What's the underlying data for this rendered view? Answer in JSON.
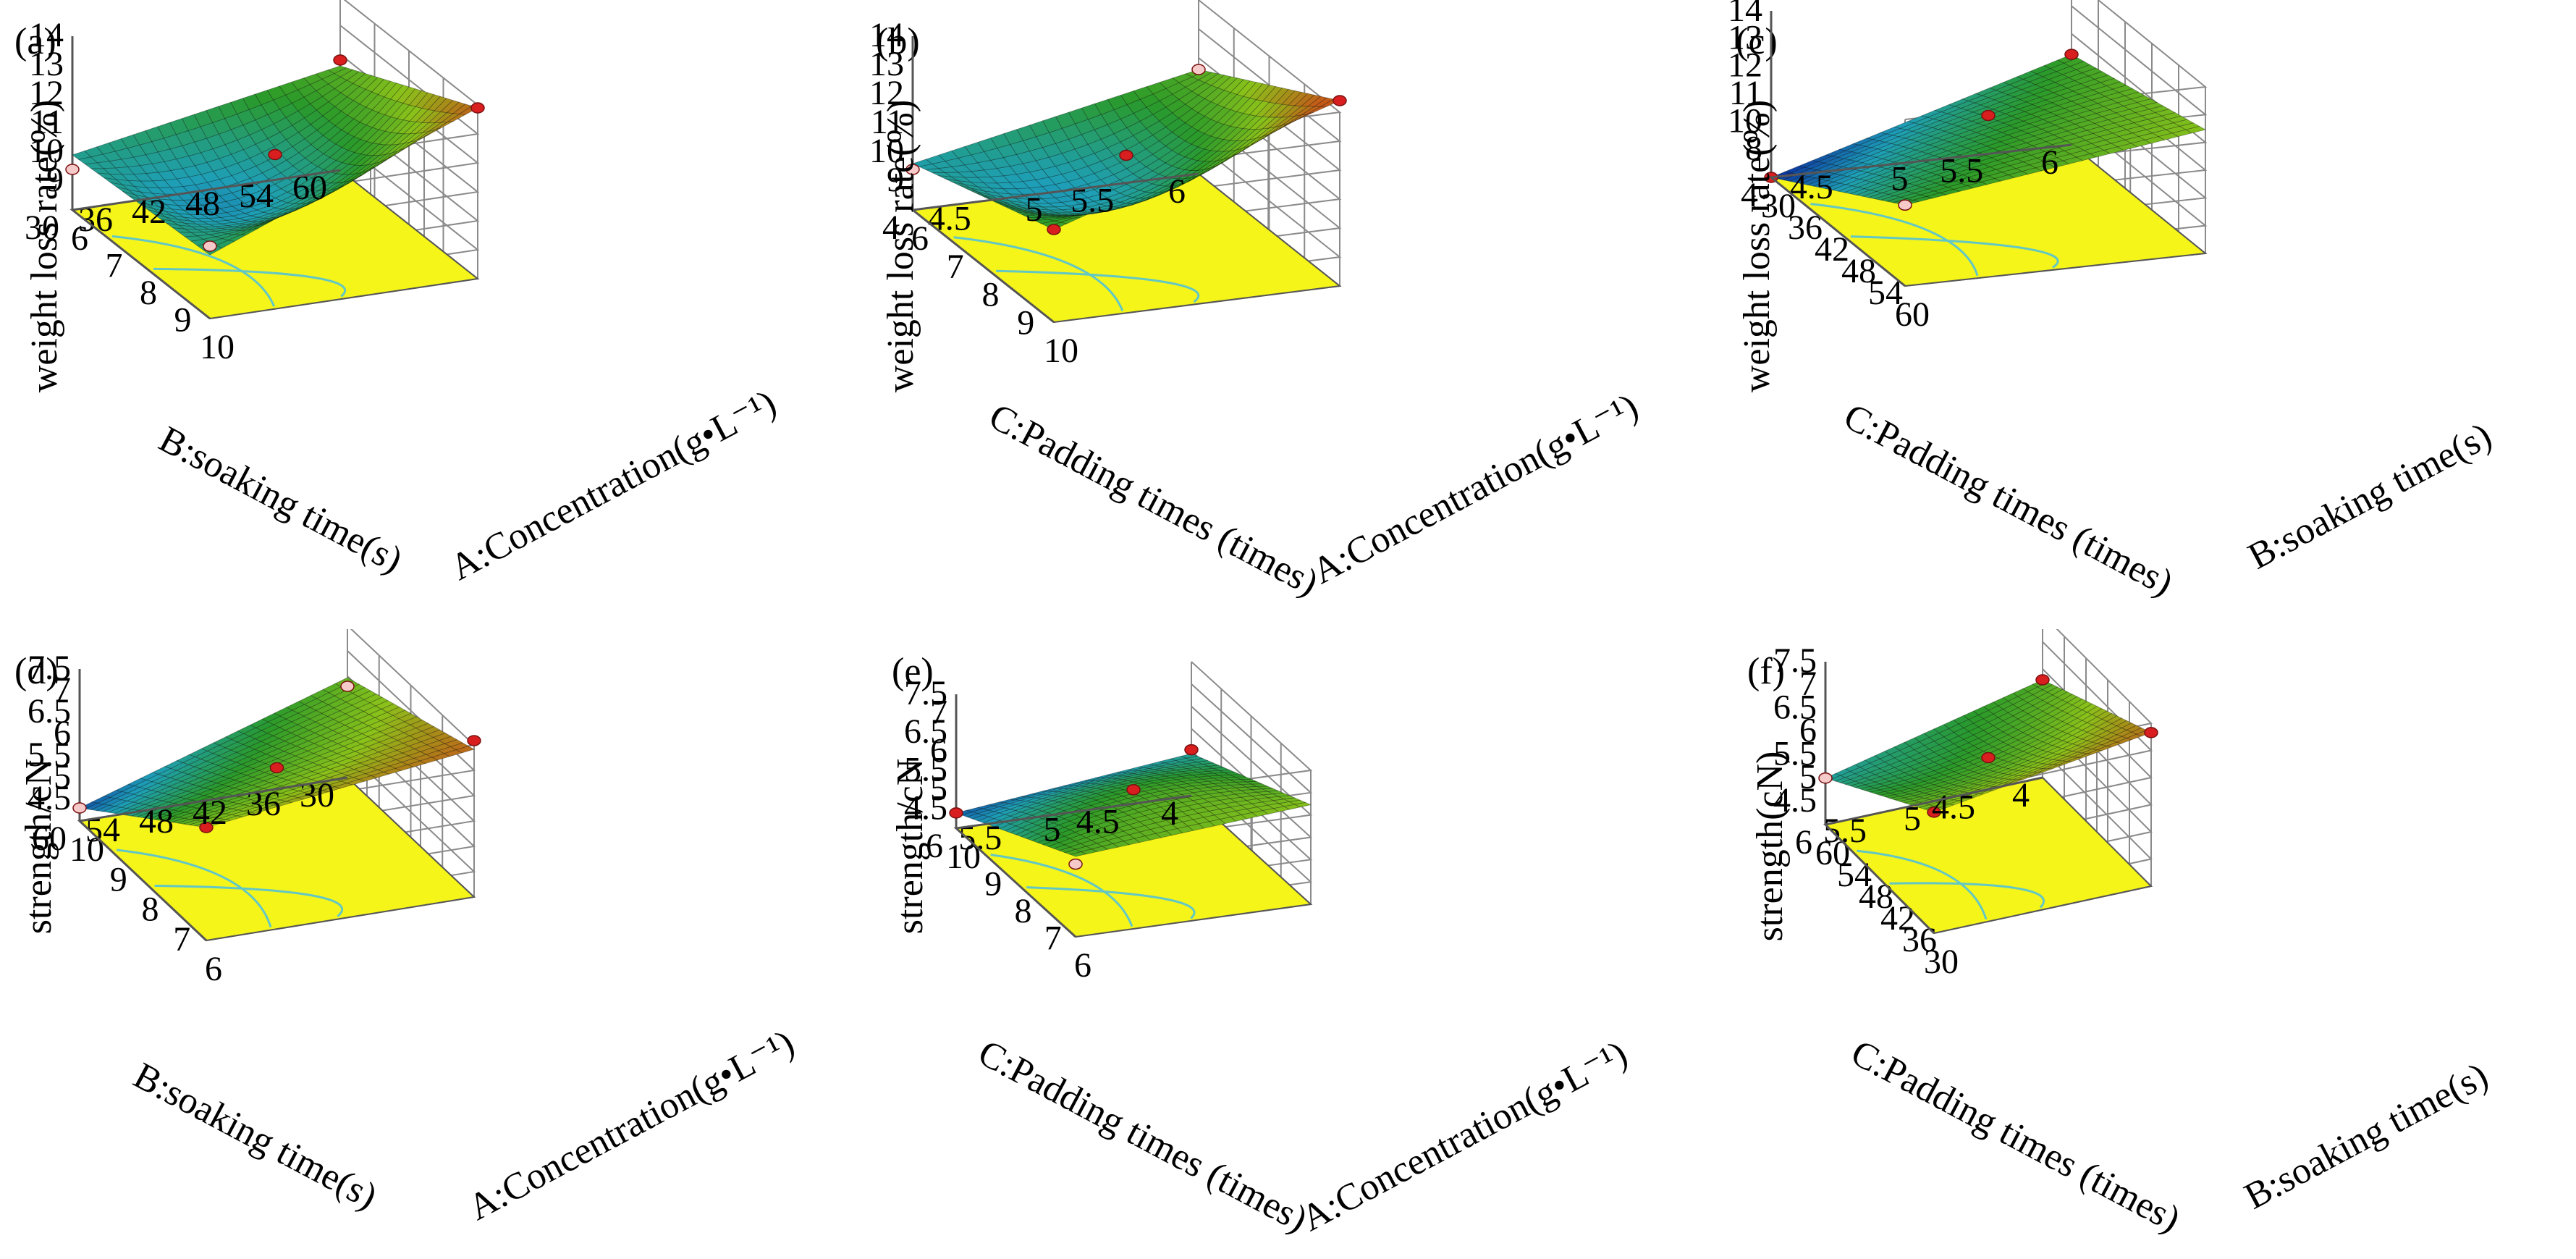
{
  "colors": {
    "floor": "#f5f519",
    "contour": "#63c7c4",
    "grid": "#8a8a8a",
    "box": "#555555",
    "point_high": "#d81e1e",
    "point_low": "#f7caca",
    "surface_low": "#0a2b9e",
    "surface_mid1": "#1e9fb7",
    "surface_mid2": "#2a9a2a",
    "surface_mid3": "#8ac21a",
    "surface_high": "#c45a18"
  },
  "chart_data": [
    {
      "id": "a",
      "panel_label": "(a)",
      "type": "surface3d",
      "ylabel": "weight loss rate(%)",
      "xlabel": "A:Concentration(g•L⁻¹)",
      "zlabel": "B:soaking time(s)",
      "x_ticks": [
        "6",
        "7",
        "8",
        "9",
        "10"
      ],
      "z_ticks": [
        "30",
        "36",
        "42",
        "48",
        "54",
        "60"
      ],
      "y_ticks": [
        "9",
        "10",
        "11",
        "12",
        "13",
        "14"
      ],
      "ylim": [
        8,
        14
      ],
      "corners": {
        "x_min_z_min": 9.9,
        "x_max_z_min": 10.2,
        "x_min_z_max": 11.6,
        "x_max_z_max": 13.9
      },
      "center": 9.6,
      "design_points": [
        {
          "x": 10,
          "z": 60,
          "y": 13.9,
          "above": true
        },
        {
          "x": 6,
          "z": 60,
          "y": 11.8,
          "above": true
        },
        {
          "x": 8,
          "z": 45,
          "y": 11.1,
          "above": true
        },
        {
          "x": 10,
          "z": 30,
          "y": 10.5,
          "above": false
        },
        {
          "x": 6,
          "z": 30,
          "y": 9.4,
          "above": false
        }
      ]
    },
    {
      "id": "b",
      "panel_label": "(b)",
      "type": "surface3d",
      "ylabel": "weight loss rate(%)",
      "xlabel": "A:Concentration(g•L⁻¹)",
      "zlabel": "C:Padding times (times)",
      "x_ticks": [
        "6",
        "7",
        "8",
        "9",
        "10"
      ],
      "z_ticks": [
        "4",
        "4.5",
        "5",
        "5.5",
        "6"
      ],
      "y_ticks": [
        "9",
        "10",
        "11",
        "12",
        "13",
        "14"
      ],
      "ylim": [
        8,
        14
      ],
      "corners": {
        "x_min_z_min": 9.6,
        "x_max_z_min": 11.2,
        "x_min_z_max": 11.6,
        "x_max_z_max": 14.4
      },
      "center": 9.8,
      "design_points": [
        {
          "x": 10,
          "z": 6,
          "y": 14.4,
          "above": true
        },
        {
          "x": 6,
          "z": 6,
          "y": 11.6,
          "above": false
        },
        {
          "x": 8,
          "z": 5,
          "y": 11.2,
          "above": true
        },
        {
          "x": 10,
          "z": 4,
          "y": 11.2,
          "above": true
        },
        {
          "x": 6,
          "z": 4,
          "y": 9.4,
          "above": false
        }
      ]
    },
    {
      "id": "c",
      "panel_label": "(c)",
      "type": "surface3d",
      "ylabel": "weight loss rate(%)",
      "xlabel": "B:soaking time(s)",
      "zlabel": "C:Padding times (times)",
      "x_ticks": [
        "30",
        "36",
        "42",
        "48",
        "54",
        "60"
      ],
      "z_ticks": [
        "4",
        "4.5",
        "5",
        "5.5",
        "6"
      ],
      "y_ticks": [
        "8",
        "10",
        "11",
        "12",
        "13",
        "14"
      ],
      "ylim": [
        7,
        14
      ],
      "corners": {
        "x_min_z_min": 7.0,
        "x_max_z_min": 10.4,
        "x_min_z_max": 10.8,
        "x_max_z_max": 12.2
      },
      "center": 10.3,
      "design_points": [
        {
          "x": 30,
          "z": 4,
          "y": 7.0,
          "above": true
        },
        {
          "x": 30,
          "z": 6,
          "y": 10.8,
          "above": true
        },
        {
          "x": 45,
          "z": 5,
          "y": 11.2,
          "above": true
        },
        {
          "x": 60,
          "z": 4,
          "y": 10.4,
          "above": false
        }
      ]
    },
    {
      "id": "d",
      "panel_label": "(d)",
      "type": "surface3d",
      "ylabel": "strength/cN",
      "xlabel": "A:Concentration(g•L⁻¹)",
      "zlabel": "B:soaking time(s)",
      "x_ticks": [
        "10",
        "9",
        "8",
        "7",
        "6"
      ],
      "z_ticks": [
        "60",
        "54",
        "48",
        "42",
        "36",
        "30"
      ],
      "y_ticks": [
        "4.5",
        "5",
        "5.5",
        "6",
        "6.5",
        "7",
        "7.5"
      ],
      "ylim": [
        4,
        7.5
      ],
      "corners": {
        "x_min_z_min": 4.3,
        "x_max_z_min": 6.6,
        "x_min_z_max": 6.3,
        "x_max_z_max": 7.4
      },
      "center": 6.1,
      "design_points": [
        {
          "x": 10,
          "z": 60,
          "y": 4.3,
          "above": false
        },
        {
          "x": 10,
          "z": 30,
          "y": 6.1,
          "above": false
        },
        {
          "x": 6,
          "z": 30,
          "y": 7.6,
          "above": true
        },
        {
          "x": 6,
          "z": 60,
          "y": 6.6,
          "above": true
        },
        {
          "x": 8,
          "z": 45,
          "y": 6.1,
          "above": true
        }
      ]
    },
    {
      "id": "e",
      "panel_label": "(e)",
      "type": "surface3d",
      "ylabel": "strength/cN",
      "xlabel": "A:Concentration(g•L⁻¹)",
      "zlabel": "C:Padding times (times)",
      "x_ticks": [
        "10",
        "9",
        "8",
        "7",
        "6"
      ],
      "z_ticks": [
        "6",
        "5.5",
        "5",
        "4.5",
        "4"
      ],
      "y_ticks": [
        "4.5",
        "5",
        "5.5",
        "6",
        "6.5",
        "7",
        "7.5"
      ],
      "ylim": [
        4,
        7.5
      ],
      "corners": {
        "x_min_z_min": 4.4,
        "x_max_z_min": 6.1,
        "x_min_z_max": 5.1,
        "x_max_z_max": 6.6
      },
      "center": 5.9,
      "design_points": [
        {
          "x": 10,
          "z": 6,
          "y": 4.4,
          "above": true
        },
        {
          "x": 10,
          "z": 4,
          "y": 5.2,
          "above": true
        },
        {
          "x": 8,
          "z": 5,
          "y": 6.0,
          "above": true
        },
        {
          "x": 6,
          "z": 6,
          "y": 5.9,
          "above": false
        }
      ]
    },
    {
      "id": "f",
      "panel_label": "(f)",
      "type": "surface3d",
      "ylabel": "strength(cN)",
      "xlabel": "B:soaking time(s)",
      "zlabel": "C:Padding times (times)",
      "x_ticks": [
        "60",
        "54",
        "48",
        "42",
        "36",
        "30"
      ],
      "z_ticks": [
        "6",
        "5.5",
        "5",
        "4.5",
        "4"
      ],
      "y_ticks": [
        "4.5",
        "5",
        "5.5",
        "6",
        "6.5",
        "7",
        "7.5"
      ],
      "ylim": [
        4,
        7.5
      ],
      "corners": {
        "x_min_z_min": 5.0,
        "x_max_z_min": 6.6,
        "x_min_z_max": 6.1,
        "x_max_z_max": 7.3
      },
      "center": 6.0,
      "design_points": [
        {
          "x": 60,
          "z": 6,
          "y": 5.0,
          "above": false
        },
        {
          "x": 60,
          "z": 4,
          "y": 6.1,
          "above": true
        },
        {
          "x": 45,
          "z": 5,
          "y": 6.1,
          "above": true
        },
        {
          "x": 30,
          "z": 6,
          "y": 6.6,
          "above": true
        },
        {
          "x": 30,
          "z": 4,
          "y": 7.3,
          "above": true
        }
      ]
    }
  ]
}
